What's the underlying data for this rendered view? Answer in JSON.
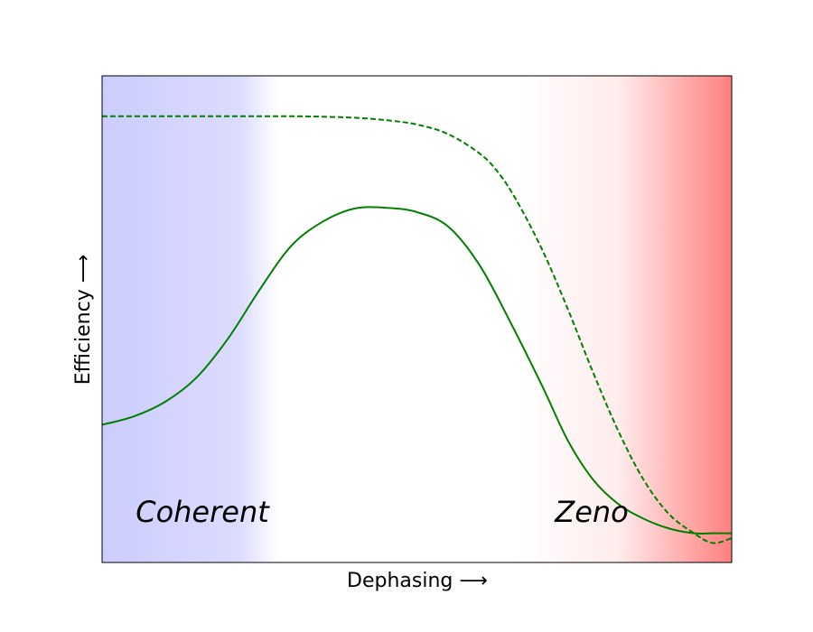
{
  "chart_data": {
    "type": "line",
    "title": "",
    "xlabel": "Dephasing ⟶",
    "ylabel": "Efficiency ⟶",
    "xlim": [
      0,
      1
    ],
    "ylim": [
      0,
      1
    ],
    "grid": false,
    "ticks_shown": false,
    "background_gradient": {
      "left_color": "#ccccff",
      "right_color": "#ff7f7f"
    },
    "regions": [
      {
        "label": "Coherent",
        "x": 0.16,
        "y": 0.1
      },
      {
        "label": "Zeno",
        "x": 0.78,
        "y": 0.1
      }
    ],
    "series": [
      {
        "style": "dashed",
        "color": "#008000",
        "x": [
          0.0,
          0.1,
          0.2,
          0.3,
          0.35,
          0.4,
          0.45,
          0.5,
          0.55,
          0.6,
          0.63,
          0.66,
          0.7,
          0.74,
          0.78,
          0.82,
          0.86,
          0.9,
          0.94,
          0.97,
          1.0
        ],
        "y": [
          0.917,
          0.917,
          0.917,
          0.917,
          0.916,
          0.914,
          0.909,
          0.9,
          0.88,
          0.84,
          0.8,
          0.74,
          0.64,
          0.52,
          0.39,
          0.27,
          0.17,
          0.1,
          0.06,
          0.04,
          0.05
        ]
      },
      {
        "style": "solid",
        "color": "#008000",
        "x": [
          0.0,
          0.05,
          0.1,
          0.15,
          0.2,
          0.25,
          0.3,
          0.35,
          0.4,
          0.45,
          0.5,
          0.55,
          0.6,
          0.65,
          0.7,
          0.74,
          0.78,
          0.82,
          0.86,
          0.9,
          0.94,
          0.97,
          1.0
        ],
        "y": [
          0.283,
          0.3,
          0.33,
          0.38,
          0.46,
          0.56,
          0.65,
          0.7,
          0.727,
          0.729,
          0.72,
          0.69,
          0.61,
          0.49,
          0.36,
          0.25,
          0.17,
          0.12,
          0.09,
          0.07,
          0.06,
          0.06,
          0.06
        ]
      }
    ]
  }
}
